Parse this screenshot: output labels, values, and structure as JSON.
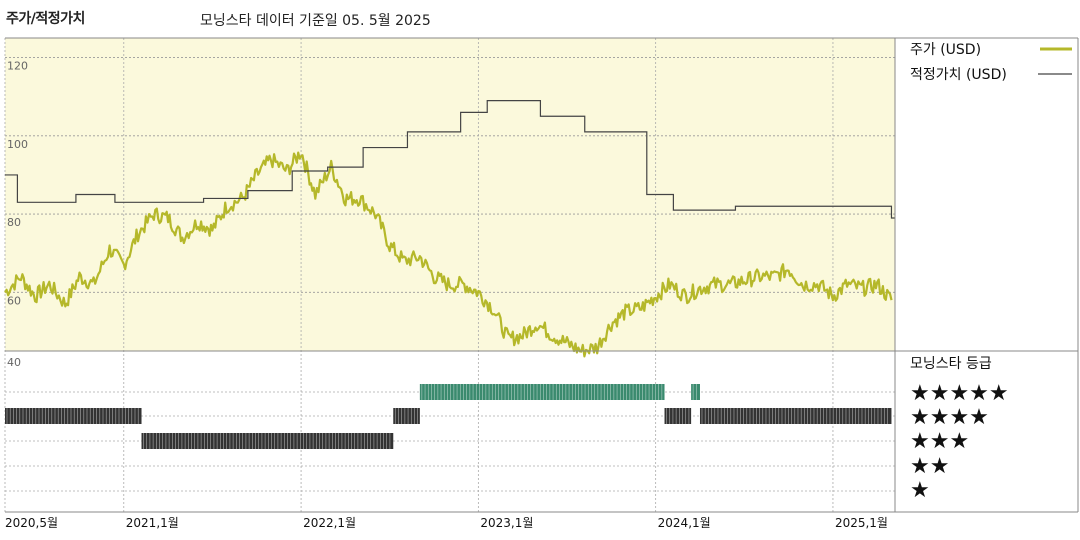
{
  "header": {
    "title": "주가/적정가치",
    "subtitle": "모닝스타 데이터 기준일 05. 5월 2025"
  },
  "legend": {
    "price_label": "주가 (USD)",
    "fair_value_label": "적정가치 (USD)",
    "rating_header": "모닝스타 등급"
  },
  "rating_rows": [
    "★★★★★",
    "★★★★",
    "★★★",
    "★★",
    "★"
  ],
  "colors": {
    "price": "#b5b82a",
    "fair_value": "#444444",
    "bg_upper": "#fbf9dc",
    "rating_green": "#3a8a6e",
    "rating_dark": "#333333"
  },
  "chart_data": {
    "type": "line",
    "y_ticks": [
      "120",
      "100",
      "80",
      "60",
      "40"
    ],
    "x_ticks": [
      "2020,5월",
      "2021,1월",
      "2022,1월",
      "2023,1월",
      "2024,1월",
      "2025,1월"
    ],
    "ylim": [
      40,
      120
    ],
    "grid": true,
    "legend_position": "right",
    "series": [
      {
        "key": "price",
        "x": [
          2020.33,
          2020.42,
          2020.5,
          2020.58,
          2020.67,
          2020.75,
          2020.83,
          2020.92,
          2021.0,
          2021.08,
          2021.17,
          2021.25,
          2021.33,
          2021.42,
          2021.5,
          2021.58,
          2021.67,
          2021.75,
          2021.83,
          2021.92,
          2022.0,
          2022.08,
          2022.17,
          2022.25,
          2022.33,
          2022.42,
          2022.5,
          2022.58,
          2022.67,
          2022.75,
          2022.83,
          2022.92,
          2023.0,
          2023.08,
          2023.17,
          2023.25,
          2023.33,
          2023.42,
          2023.5,
          2023.58,
          2023.67,
          2023.75,
          2023.83,
          2023.92,
          2024.0,
          2024.08,
          2024.17,
          2024.25,
          2024.33,
          2024.42,
          2024.5,
          2024.58,
          2024.67,
          2024.75,
          2024.83,
          2024.92,
          2025.0,
          2025.08,
          2025.17,
          2025.25,
          2025.33
        ],
        "values": [
          60,
          64,
          59,
          62,
          57,
          64,
          62,
          71,
          67,
          75,
          80,
          79,
          74,
          78,
          76,
          82,
          84,
          90,
          94,
          91,
          96,
          85,
          92,
          84,
          84,
          80,
          72,
          68,
          69,
          64,
          62,
          62,
          60,
          56,
          48,
          49,
          52,
          49,
          47,
          45,
          46,
          52,
          55,
          56,
          59,
          62,
          59,
          61,
          62,
          62,
          63,
          64,
          64,
          66,
          62,
          62,
          59,
          62,
          61,
          62,
          58
        ]
      },
      {
        "key": "fair_value",
        "x": [
          2020.33,
          2020.4,
          2020.73,
          2020.95,
          2021.12,
          2021.45,
          2021.7,
          2021.95,
          2022.15,
          2022.35,
          2022.6,
          2022.9,
          2023.05,
          2023.35,
          2023.6,
          2023.95,
          2024.1,
          2024.45,
          2025.33
        ],
        "values": [
          90,
          83,
          85,
          83,
          83,
          84,
          86,
          91,
          92,
          97,
          101,
          106,
          109,
          105,
          101,
          85,
          81,
          82,
          79
        ]
      }
    ]
  },
  "ratings": {
    "periods": [
      {
        "stars": 4,
        "start": 2020.33,
        "end": 2021.1
      },
      {
        "stars": 3,
        "start": 2021.1,
        "end": 2022.52
      },
      {
        "stars": 4,
        "start": 2022.52,
        "end": 2022.67
      },
      {
        "stars": 5,
        "start": 2022.67,
        "end": 2024.05
      },
      {
        "stars": 4,
        "start": 2024.05,
        "end": 2024.2
      },
      {
        "stars": 5,
        "start": 2024.2,
        "end": 2024.25
      },
      {
        "stars": 4,
        "start": 2024.25,
        "end": 2025.33
      }
    ]
  }
}
